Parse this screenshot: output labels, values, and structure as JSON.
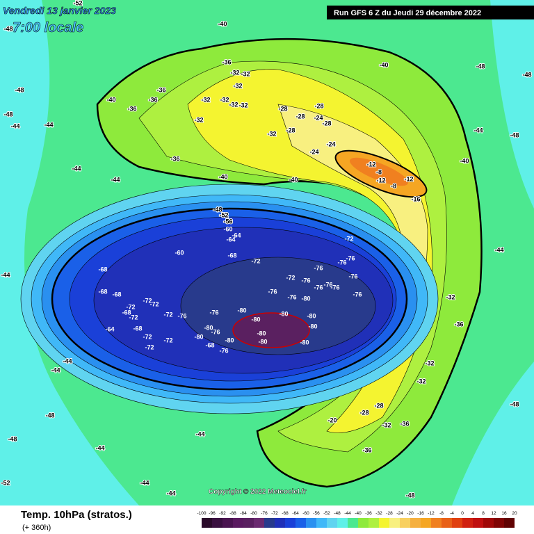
{
  "header": {
    "date": "Vendredi 13 janvier 2023",
    "time": "7:00 locale",
    "run": "Run GFS 6 Z du Jeudi 29 décembre 2022"
  },
  "copyright": "Copyright © 2022 Meteociel.fr",
  "footer": {
    "title": "Temp. 10hPa (stratos.)",
    "lead": "(+ 360h)"
  },
  "colorbar": {
    "values": [
      -100,
      -96,
      -92,
      -88,
      -84,
      -80,
      -76,
      -72,
      -68,
      -64,
      -60,
      -56,
      -52,
      -48,
      -44,
      -40,
      -36,
      -32,
      -28,
      -24,
      -20,
      -16,
      -12,
      -8,
      -4,
      0,
      4,
      8,
      12,
      16,
      20
    ],
    "colors": [
      "#2a0a2a",
      "#3a1040",
      "#4a1450",
      "#5a1a60",
      "#5a2060",
      "#6a2a70",
      "#283a8c",
      "#2030b8",
      "#1a40d8",
      "#1a60e8",
      "#2a90f0",
      "#40b8f8",
      "#60d4f0",
      "#5ff0e8",
      "#4ce890",
      "#8eea3c",
      "#aef040",
      "#f4f430",
      "#f8f080",
      "#f8d060",
      "#f5b040",
      "#f5a623",
      "#f08020",
      "#e86018",
      "#e04010",
      "#d02010",
      "#c01010",
      "#a00808",
      "#800404",
      "#600202",
      "#400000"
    ]
  },
  "contour_labels": [
    -40,
    -36,
    -32,
    -32,
    -32,
    -36,
    -40,
    -36,
    -36,
    -32,
    -32,
    -32,
    -32,
    -28,
    -28,
    -28,
    -24,
    -28,
    -28,
    -32,
    -32,
    -24,
    -24,
    -12,
    -8,
    -12,
    -12,
    -16,
    -8,
    -36,
    -40,
    -40,
    -40,
    -40,
    -44,
    -44,
    -48,
    -48,
    -36,
    -32,
    -32,
    -32,
    -28,
    -28,
    -32,
    -36,
    -36,
    -20,
    -44,
    -44,
    -48,
    -44,
    -44,
    -48,
    -44,
    -44,
    -44,
    -48,
    -48,
    -44,
    -44,
    -44,
    -44,
    -48,
    -48,
    -52,
    -48,
    -52,
    -48,
    -48,
    -52,
    -56,
    -60,
    -64,
    -64,
    -68,
    -60,
    -72,
    -72,
    -68,
    -68,
    -68,
    -72,
    -72,
    -72,
    -72,
    -68,
    -64,
    -68,
    -72,
    -72,
    -76,
    -72,
    -72,
    -76,
    -76,
    -72,
    -76,
    -76,
    -76,
    -76,
    -76,
    -76,
    -76,
    -76,
    -76,
    -76,
    -80,
    -80,
    -80,
    -80,
    -80,
    -80,
    -80,
    -80,
    -80,
    -80,
    -76,
    -80,
    -80,
    -76,
    -68
  ]
}
